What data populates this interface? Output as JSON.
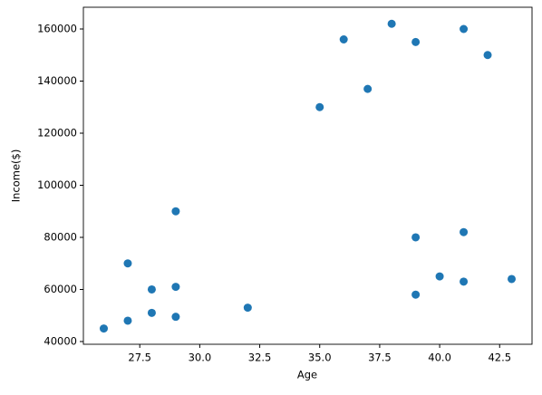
{
  "chart_data": {
    "type": "scatter",
    "x_label": "Age",
    "y_label": "Income($)",
    "color": "#1f77b4",
    "x": [
      27,
      29,
      29,
      28,
      42,
      39,
      41,
      38,
      36,
      35,
      37,
      26,
      27,
      28,
      29,
      32,
      40,
      41,
      43,
      39,
      41,
      39
    ],
    "values": [
      70000,
      90000,
      61000,
      60000,
      150000,
      155000,
      160000,
      162000,
      156000,
      130000,
      137000,
      45000,
      48000,
      51000,
      49500,
      53000,
      65000,
      63000,
      64000,
      80000,
      82000,
      58000
    ],
    "xlim": [
      25.15,
      43.85
    ],
    "ylim": [
      38950,
      168350
    ],
    "xticks": [
      27.5,
      {
        "value": 30,
        "label": "30.0"
      },
      32.5,
      {
        "value": 35,
        "label": "35.0"
      },
      37.5,
      {
        "value": 40,
        "label": "40.0"
      },
      42.5
    ],
    "yticks": [
      40000,
      60000,
      80000,
      100000,
      120000,
      140000,
      160000
    ]
  }
}
